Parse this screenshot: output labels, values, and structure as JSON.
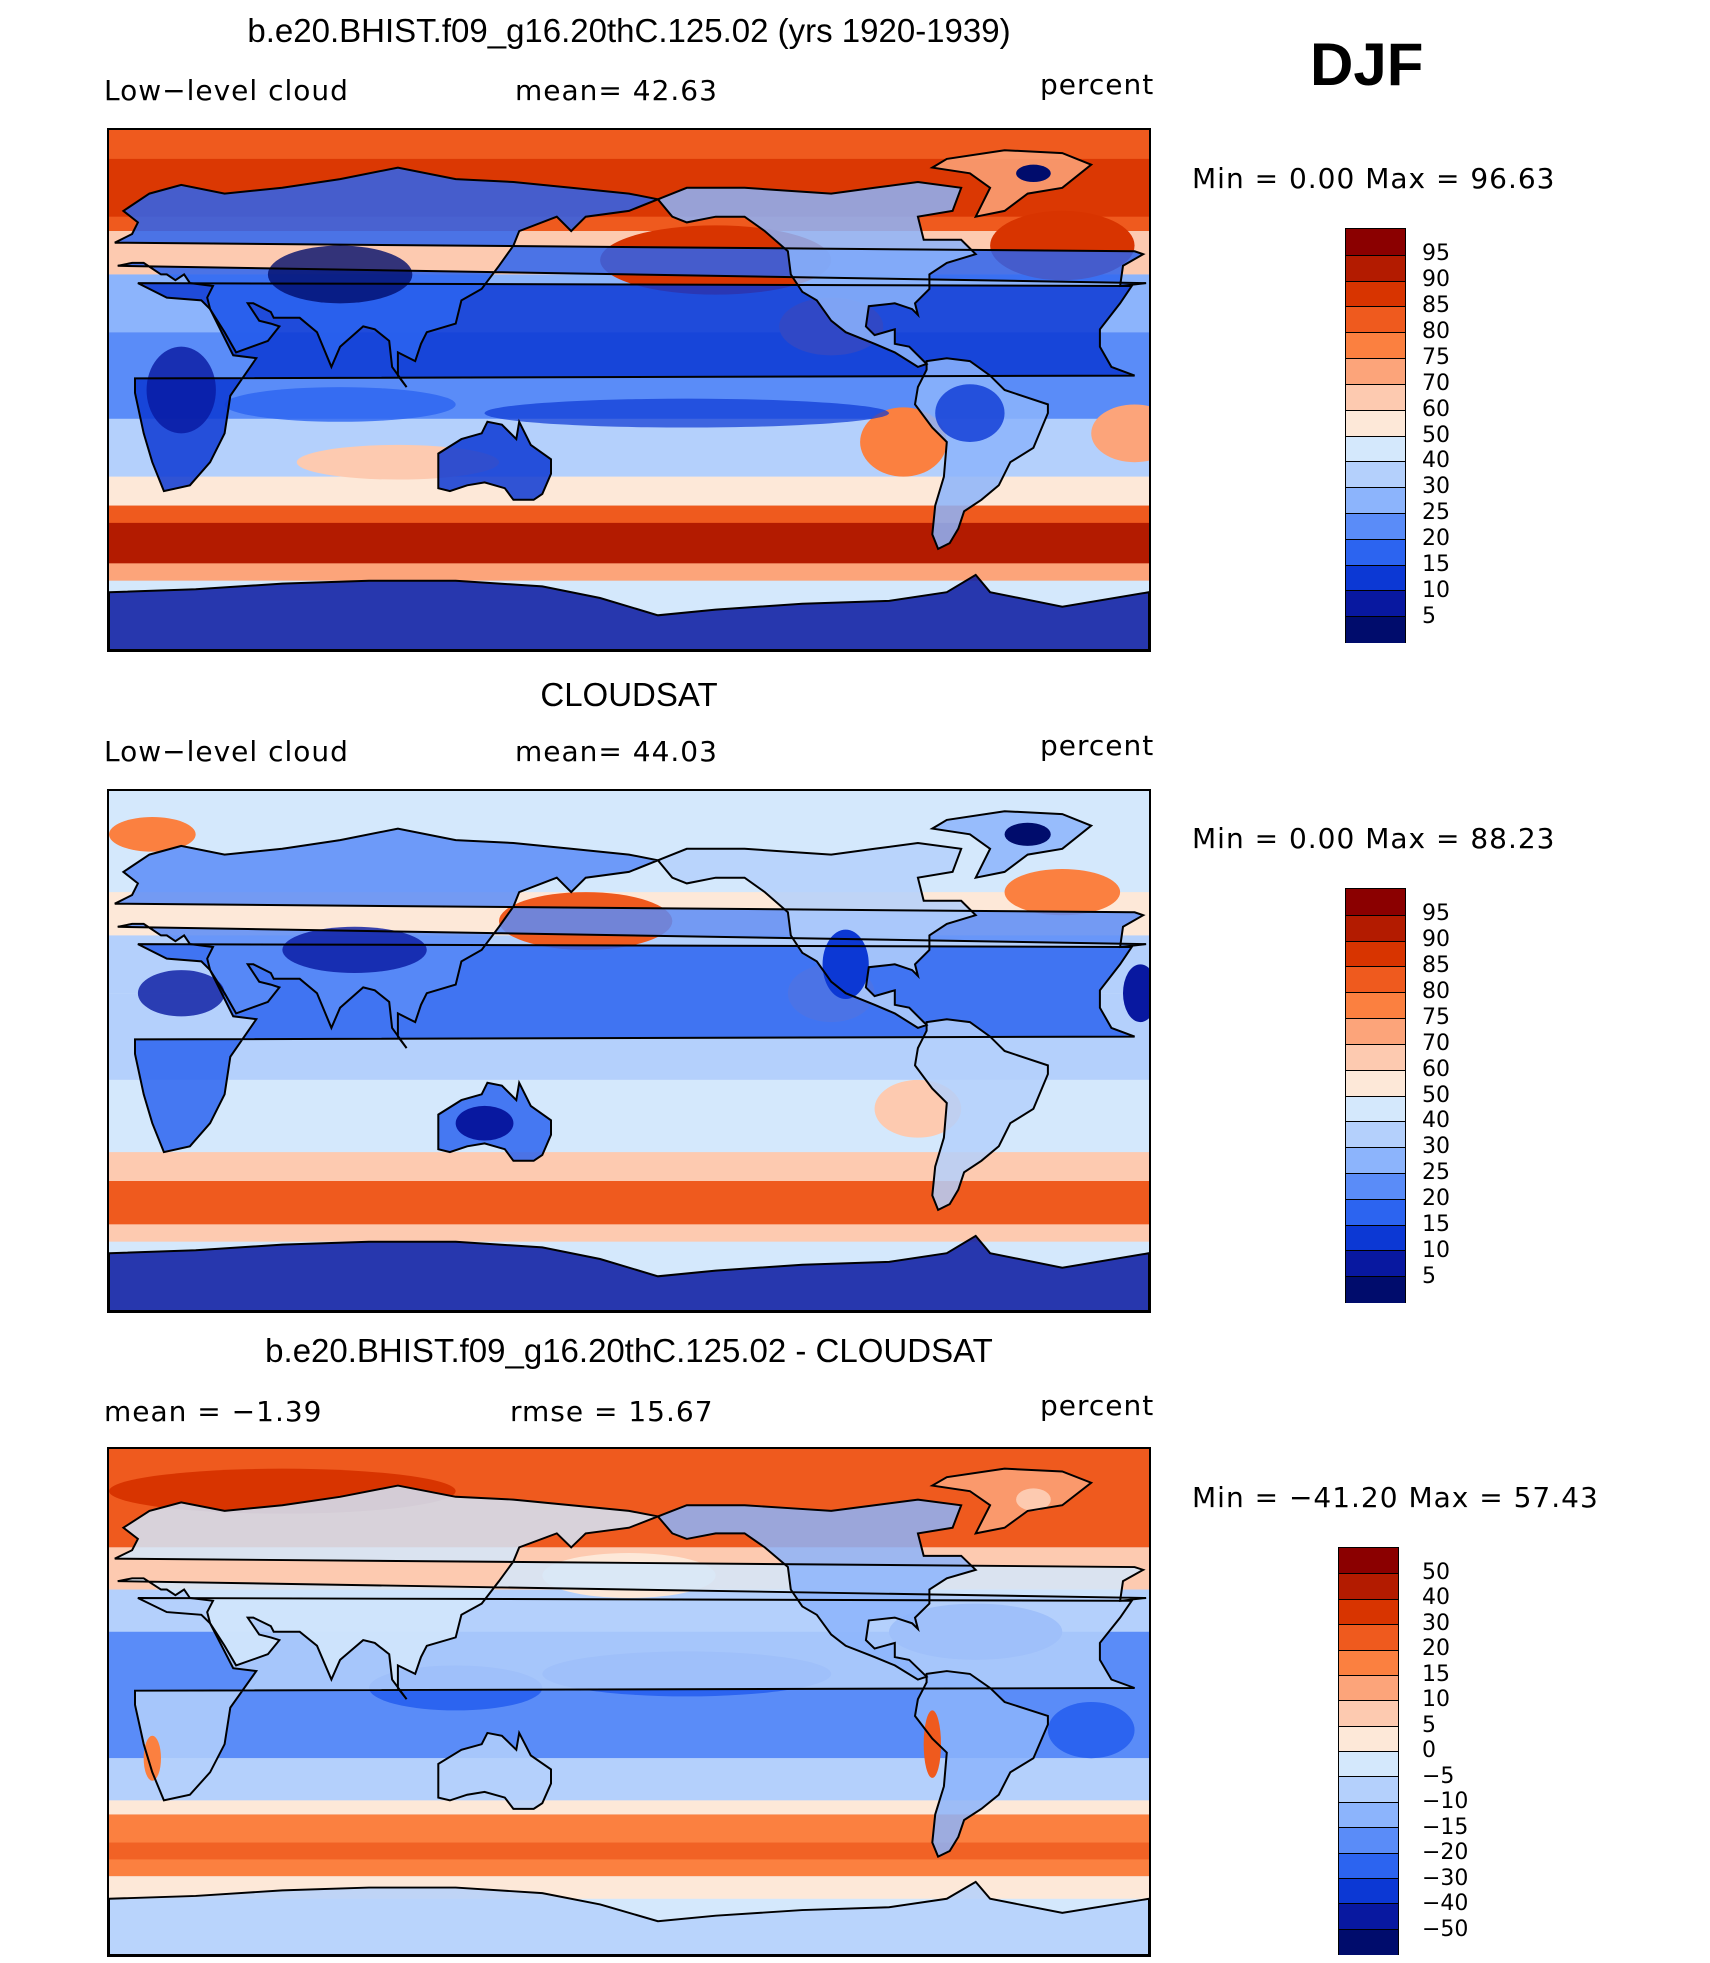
{
  "season": "DJF",
  "panels": [
    {
      "id": "model",
      "title": "b.e20.BHIST.f09_g16.20thC.125.02 (yrs 1920-1939)",
      "left_label": "Low−level cloud",
      "mid_label": "mean=   42.63",
      "right_label": "percent",
      "minmax": "Min  =     0.00  Max  =    96.63",
      "map_type": "model",
      "colorbar": {
        "colors": [
          "#8b0000",
          "#b31b00",
          "#d83400",
          "#ef5a1e",
          "#fb8040",
          "#fca47a",
          "#fdcab0",
          "#fde8d8",
          "#d4e8fc",
          "#b4d0fc",
          "#8cb4fc",
          "#5a8cf8",
          "#2c64f0",
          "#0c38d4",
          "#0818a0",
          "#000c6c"
        ],
        "labels": [
          "95",
          "90",
          "85",
          "80",
          "75",
          "70",
          "60",
          "50",
          "40",
          "30",
          "25",
          "20",
          "15",
          "10",
          "5"
        ]
      }
    },
    {
      "id": "obs",
      "title": "CLOUDSAT",
      "left_label": "Low−level cloud",
      "mid_label": "mean=   44.03",
      "right_label": "percent",
      "minmax": "Min  =     0.00  Max  =    88.23",
      "map_type": "obs",
      "colorbar": {
        "colors": [
          "#8b0000",
          "#b31b00",
          "#d83400",
          "#ef5a1e",
          "#fb8040",
          "#fca47a",
          "#fdcab0",
          "#fde8d8",
          "#d4e8fc",
          "#b4d0fc",
          "#8cb4fc",
          "#5a8cf8",
          "#2c64f0",
          "#0c38d4",
          "#0818a0",
          "#000c6c"
        ],
        "labels": [
          "95",
          "90",
          "85",
          "80",
          "75",
          "70",
          "60",
          "50",
          "40",
          "30",
          "25",
          "20",
          "15",
          "10",
          "5"
        ]
      }
    },
    {
      "id": "diff",
      "title": "b.e20.BHIST.f09_g16.20thC.125.02 - CLOUDSAT",
      "left_label": "mean  =    −1.39",
      "mid_label": "rmse  =    15.67",
      "right_label": "percent",
      "minmax": "Min  =  −41.20  Max  =    57.43",
      "map_type": "diff",
      "colorbar": {
        "colors": [
          "#8b0000",
          "#b31b00",
          "#d83400",
          "#ef5a1e",
          "#fb8040",
          "#fca47a",
          "#fdcab0",
          "#fde8d8",
          "#d4e8fc",
          "#b4d0fc",
          "#8cb4fc",
          "#5a8cf8",
          "#2c64f0",
          "#0c38d4",
          "#0818a0",
          "#000c6c"
        ],
        "labels": [
          "50",
          "40",
          "30",
          "20",
          "15",
          "10",
          "5",
          "0",
          "−5",
          "−10",
          "−15",
          "−20",
          "−30",
          "−40",
          "−50"
        ]
      }
    }
  ]
}
